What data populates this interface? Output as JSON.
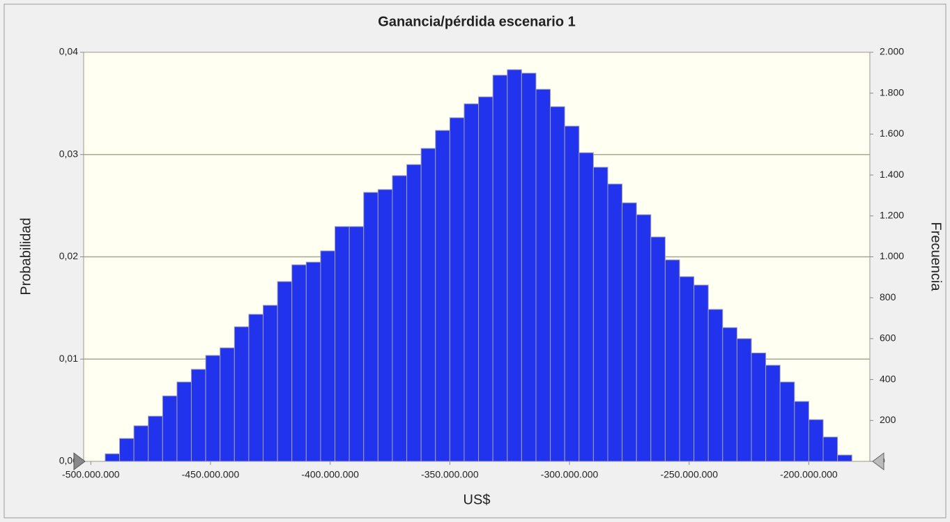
{
  "chart_data": {
    "type": "histogram",
    "title": "Ganancia/pérdida escenario 1",
    "xlabel": "US$",
    "ylabel": "Probabilidad",
    "y2label": "Frecuencia",
    "color": "#2233ee",
    "axis": "y2",
    "grid": true,
    "bins": [
      -494000000,
      -488000000,
      -482000000,
      -476000000,
      -470000000,
      -464000000,
      -458000000,
      -452000000,
      -446000000,
      -440000000,
      -434000000,
      -428000000,
      -422000000,
      -416000000,
      -410000000,
      -404000000,
      -398000000,
      -392000000,
      -386000000,
      -380000000,
      -374000000,
      -368000000,
      -362000000,
      -356000000,
      -350000000,
      -344000000,
      -338000000,
      -332000000,
      -326000000,
      -320000000,
      -314000000,
      -308000000,
      -302000000,
      -296000000,
      -290000000,
      -284000000,
      -278000000,
      -272000000,
      -266000000,
      -260000000,
      -254000000,
      -248000000,
      -242000000,
      -236000000,
      -230000000,
      -224000000,
      -218000000,
      -212000000,
      -206000000,
      -200000000,
      -194000000,
      -188000000,
      -182000000
    ],
    "values": [
      37,
      112,
      174,
      221,
      320,
      388,
      450,
      518,
      555,
      658,
      719,
      763,
      879,
      961,
      974,
      1029,
      1148,
      1148,
      1315,
      1329,
      1397,
      1451,
      1530,
      1618,
      1680,
      1748,
      1782,
      1888,
      1915,
      1898,
      1819,
      1734,
      1639,
      1509,
      1438,
      1356,
      1264,
      1206,
      1097,
      985,
      903,
      862,
      743,
      654,
      600,
      530,
      470,
      388,
      293,
      204,
      119,
      31
    ],
    "xlim": [
      -503000000,
      -174500000
    ],
    "xticks": [
      {
        "value": -500000000,
        "label": "-500.000.000"
      },
      {
        "value": -450000000,
        "label": "-450.000.000"
      },
      {
        "value": -400000000,
        "label": "-400.000.000"
      },
      {
        "value": -350000000,
        "label": "-350.000.000"
      },
      {
        "value": -300000000,
        "label": "-300.000.000"
      },
      {
        "value": -250000000,
        "label": "-250.000.000"
      },
      {
        "value": -200000000,
        "label": "-200.000.000"
      }
    ],
    "ylim": [
      0,
      0.04
    ],
    "yticks": [
      {
        "value": 0,
        "label": "0,00"
      },
      {
        "value": 0.01,
        "label": "0,01"
      },
      {
        "value": 0.02,
        "label": "0,02"
      },
      {
        "value": 0.03,
        "label": "0,03"
      },
      {
        "value": 0.04,
        "label": "0,04"
      }
    ],
    "y2lim": [
      0,
      2000
    ],
    "y2ticks": [
      0,
      200,
      400,
      600,
      800,
      {
        "value": 1000,
        "label": "1.000"
      },
      {
        "value": 1200,
        "label": "1.200"
      },
      {
        "value": 1400,
        "label": "1.400"
      },
      {
        "value": 1600,
        "label": "1.600"
      },
      {
        "value": 1800,
        "label": "1.800"
      },
      {
        "value": 2000,
        "label": "2.000"
      }
    ]
  }
}
